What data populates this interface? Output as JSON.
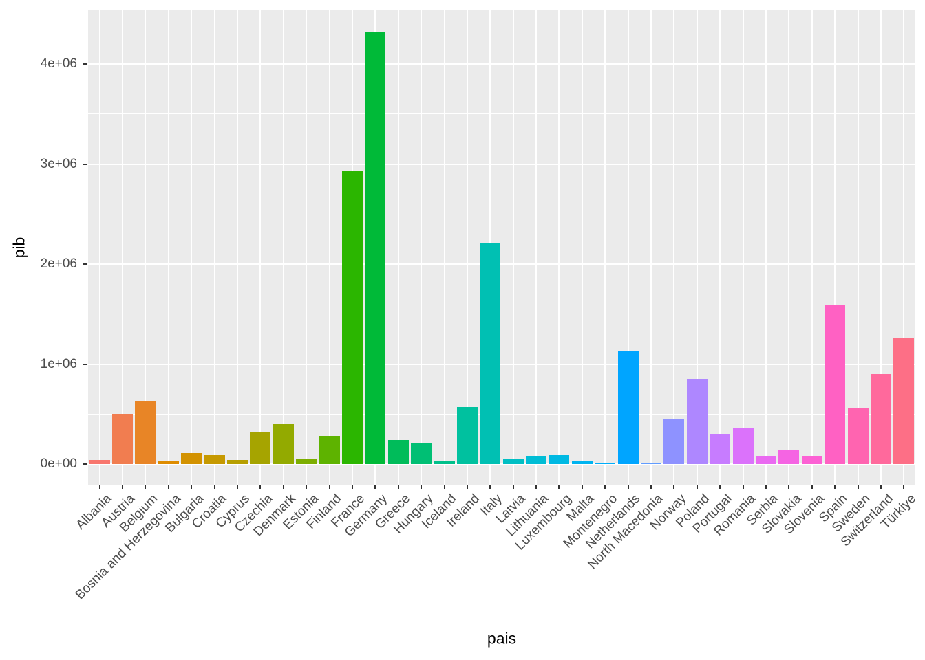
{
  "chart_data": {
    "type": "bar",
    "title": "",
    "xlabel": "pais",
    "ylabel": "pib",
    "legend": "none",
    "grid": "major-and-minor",
    "categories": [
      "Albania",
      "Austria",
      "Belgium",
      "Bosnia and Herzegovina",
      "Bulgaria",
      "Croatia",
      "Cyprus",
      "Czechia",
      "Denmark",
      "Estonia",
      "Finland",
      "France",
      "Germany",
      "Greece",
      "Hungary",
      "Iceland",
      "Ireland",
      "Italy",
      "Latvia",
      "Lithuania",
      "Luxembourg",
      "Malta",
      "Montenegro",
      "Netherlands",
      "North Macedonia",
      "Norway",
      "Poland",
      "Portugal",
      "Romania",
      "Serbia",
      "Slovakia",
      "Slovenia",
      "Spain",
      "Sweden",
      "Switzerland",
      "Türkiye"
    ],
    "values": [
      38000,
      500000,
      628000,
      32000,
      112000,
      90000,
      41000,
      323000,
      401000,
      45000,
      282000,
      2925000,
      4324000,
      243000,
      212000,
      34000,
      573000,
      2203000,
      48000,
      78000,
      89000,
      25000,
      7000,
      1126000,
      16000,
      454000,
      852000,
      296000,
      360000,
      85000,
      137000,
      74000,
      1595000,
      566000,
      903000,
      1263000
    ],
    "y_ticks": {
      "values": [
        0,
        1000000,
        2000000,
        3000000,
        4000000
      ],
      "labels": [
        "0e+00",
        "1e+06",
        "2e+06",
        "3e+06",
        "4e+06"
      ]
    },
    "y_minor_ticks": [
      500000,
      1500000,
      2500000,
      3500000,
      4500000
    ],
    "ylim": [
      -216000,
      4536000
    ],
    "bar_width_fraction": 0.9,
    "palette": {
      "name": "ggplot2-hue",
      "hue_start": 15,
      "hue_step": 10,
      "chroma": 100,
      "luminance": 65,
      "sampled_colors": {
        "Albania": "#F8766D",
        "Belgium": "#E38900",
        "Germany": "#00BA38",
        "Italy": "#00C1A9",
        "Netherlands": "#00A9FF",
        "Poland": "#B983FF",
        "Spain": "#FF61BF",
        "Türkiye": "#FD6F86"
      }
    },
    "colors": {
      "figure_background": "#FFFFFF",
      "panel_background": "#EBEBEB",
      "gridline_major": "#FFFFFF",
      "gridline_minor": "#FFFFFF",
      "tick_mark": "#333333",
      "tick_label": "#4D4D4D",
      "axis_title": "#000000"
    }
  }
}
